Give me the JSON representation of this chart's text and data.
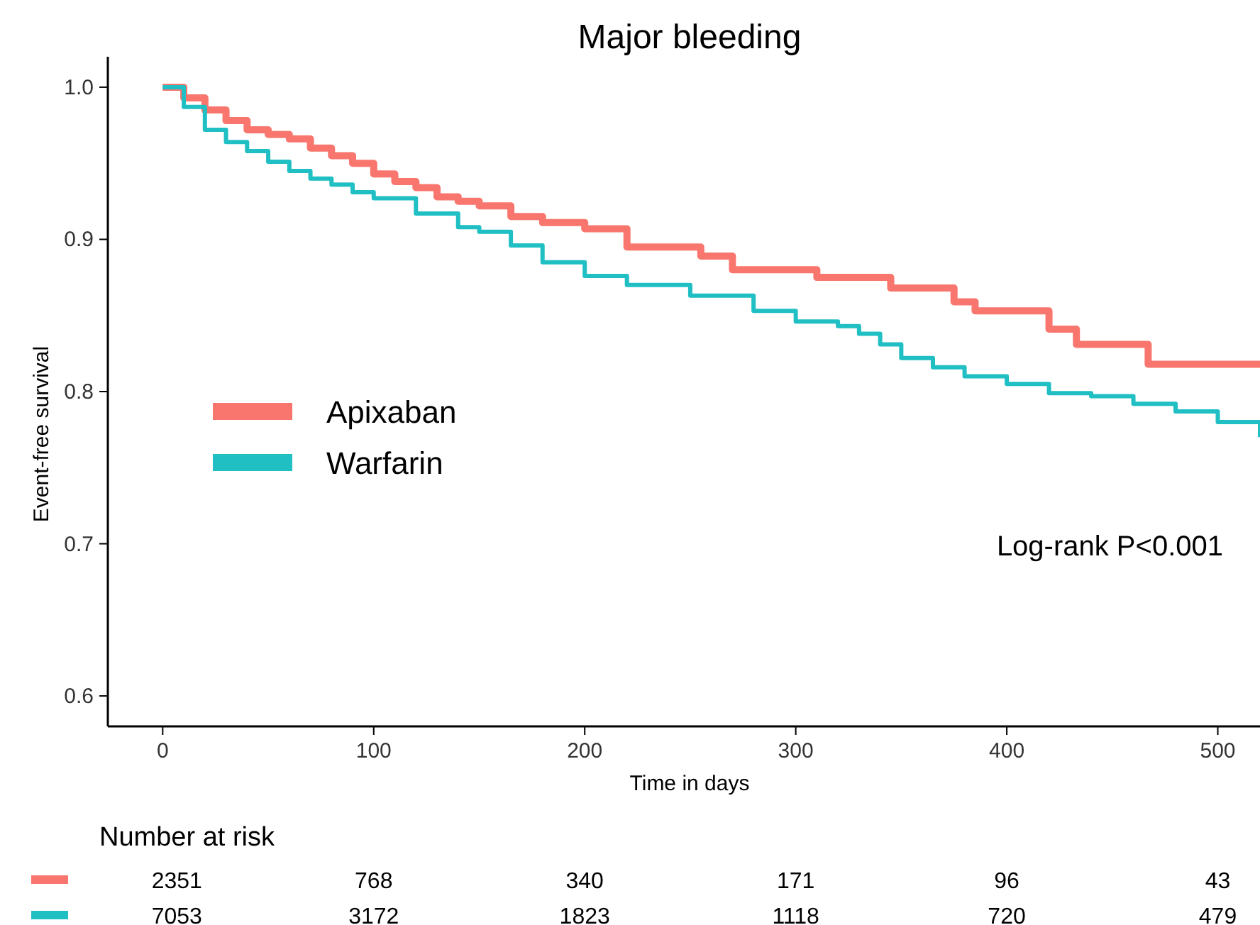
{
  "chart_data": {
    "type": "step",
    "title": "Major bleeding",
    "xlabel": "Time in days",
    "ylabel": "Event-free survival",
    "xlim": [
      -26,
      520
    ],
    "ylim": [
      0.58,
      1.02
    ],
    "xticks": [
      0,
      100,
      200,
      300,
      400,
      500
    ],
    "yticks": [
      {
        "value": 0.6,
        "label": "0.6"
      },
      {
        "value": 0.7,
        "label": "0.7"
      },
      {
        "value": 0.8,
        "label": "0.8"
      },
      {
        "value": 0.9,
        "label": "0.9"
      },
      {
        "value": 1.0,
        "label": "1.0"
      }
    ],
    "grid": false,
    "legend": "left",
    "line_style": "solid",
    "series": [
      {
        "name": "Apixaban",
        "color": "#f8766d",
        "x": [
          0,
          10,
          20,
          30,
          40,
          50,
          60,
          70,
          80,
          90,
          100,
          110,
          120,
          130,
          140,
          150,
          165,
          180,
          200,
          220,
          255,
          270,
          310,
          345,
          375,
          385,
          420,
          433,
          467,
          520
        ],
        "values": [
          1.0,
          0.993,
          0.985,
          0.978,
          0.972,
          0.969,
          0.966,
          0.96,
          0.955,
          0.95,
          0.943,
          0.938,
          0.934,
          0.928,
          0.925,
          0.922,
          0.915,
          0.911,
          0.907,
          0.895,
          0.889,
          0.88,
          0.875,
          0.868,
          0.859,
          0.853,
          0.841,
          0.831,
          0.818,
          0.818
        ]
      },
      {
        "name": "Warfarin",
        "color": "#1fbfc4",
        "x": [
          0,
          10,
          20,
          30,
          40,
          50,
          60,
          70,
          80,
          90,
          100,
          120,
          140,
          150,
          165,
          180,
          200,
          220,
          250,
          280,
          300,
          320,
          330,
          340,
          350,
          365,
          380,
          400,
          420,
          440,
          460,
          480,
          500,
          520
        ],
        "values": [
          1.0,
          0.987,
          0.972,
          0.964,
          0.958,
          0.951,
          0.945,
          0.94,
          0.936,
          0.931,
          0.927,
          0.917,
          0.908,
          0.905,
          0.896,
          0.885,
          0.876,
          0.87,
          0.863,
          0.853,
          0.846,
          0.843,
          0.838,
          0.831,
          0.822,
          0.816,
          0.81,
          0.805,
          0.799,
          0.797,
          0.792,
          0.787,
          0.78,
          0.77
        ]
      }
    ],
    "annotations": [
      "Log-rank P<0.001",
      "Number at risk",
      "2351",
      "768",
      "340",
      "171",
      "96",
      "43",
      "7053",
      "3172",
      "1823",
      "1118",
      "720",
      "479"
    ]
  }
}
